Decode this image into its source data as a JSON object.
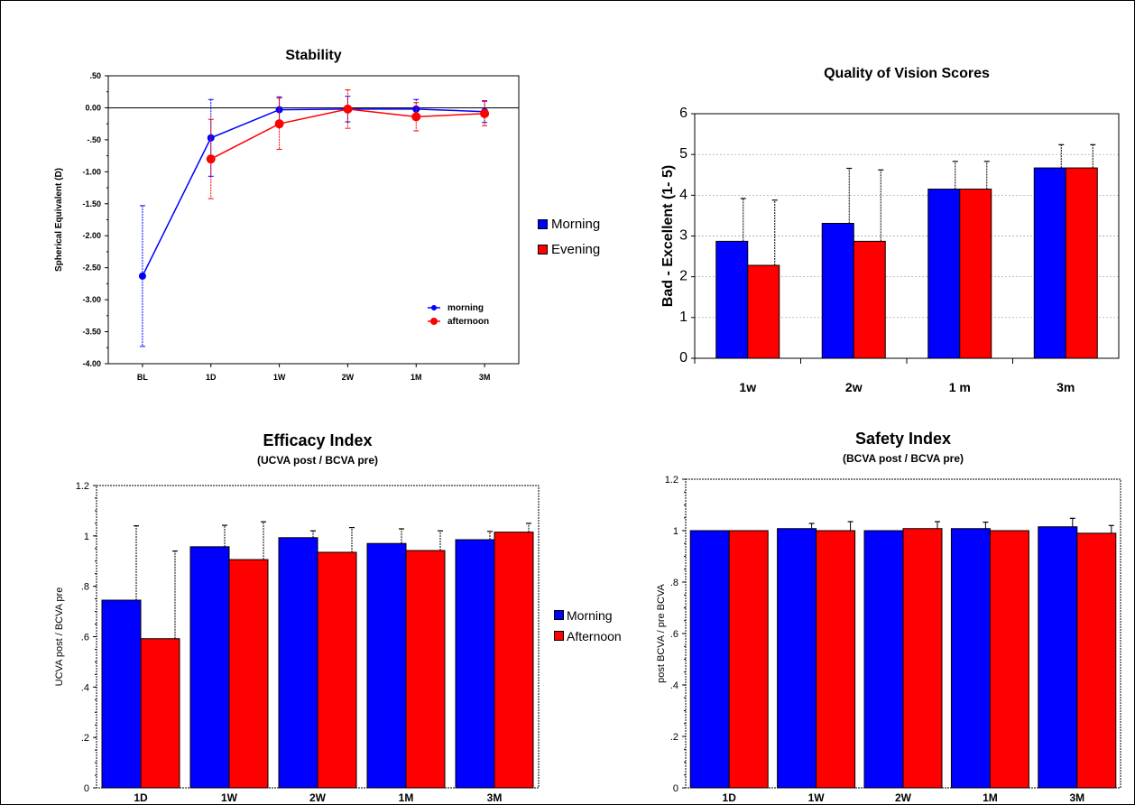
{
  "colors": {
    "morning": "#0000ff",
    "evening": "#ff0000"
  },
  "chart_data": [
    {
      "id": "stability",
      "type": "line",
      "title": "Stability",
      "ylabel": "Spherical Equivalent (D)",
      "categories": [
        "BL",
        "1D",
        "1W",
        "2W",
        "1M",
        "3M"
      ],
      "yticks": [
        ".50",
        "0.00",
        "-.50",
        "-1.00",
        "-1.50",
        "-2.00",
        "-2.50",
        "-3.00",
        "-3.50",
        "-4.00"
      ],
      "ylim": [
        -4.0,
        0.5
      ],
      "series": [
        {
          "name": "morning",
          "x": [
            "BL",
            "1D",
            "1W",
            "2W",
            "1M",
            "3M"
          ],
          "values": [
            -2.63,
            -0.47,
            -0.03,
            -0.02,
            -0.02,
            -0.06
          ],
          "err": [
            1.1,
            0.6,
            0.2,
            0.2,
            0.15,
            0.17
          ]
        },
        {
          "name": "afternoon",
          "x": [
            "1D",
            "1W",
            "2W",
            "1M",
            "3M"
          ],
          "values": [
            -0.8,
            -0.25,
            -0.02,
            -0.14,
            -0.09
          ],
          "err": [
            0.62,
            0.4,
            0.3,
            0.22,
            0.19
          ]
        }
      ]
    },
    {
      "id": "quality",
      "type": "bar",
      "title": "Quality of Vision Scores",
      "ylabel": "Bad - Excellent (1- 5)",
      "categories": [
        "1w",
        "2w",
        "1 m",
        "3m"
      ],
      "yticks": [
        "0",
        "1",
        "2",
        "3",
        "4",
        "5",
        "6"
      ],
      "ylim": [
        0,
        6
      ],
      "series": [
        {
          "name": "Morning",
          "values": [
            2.87,
            3.31,
            4.15,
            4.67
          ],
          "err": [
            1.05,
            1.35,
            0.68,
            0.57
          ]
        },
        {
          "name": "Evening",
          "values": [
            2.28,
            2.87,
            4.15,
            4.67
          ],
          "err": [
            1.6,
            1.75,
            0.68,
            0.57
          ]
        }
      ],
      "legend": [
        "Morning",
        "Evening"
      ]
    },
    {
      "id": "efficacy",
      "type": "bar",
      "title": "Efficacy Index",
      "subtitle": "(UCVA post / BCVA pre)",
      "ylabel": "UCVA post / BCVA pre",
      "categories": [
        "1D",
        "1W",
        "2W",
        "1M",
        "3M"
      ],
      "yticks": [
        "0",
        ".2",
        ".4",
        ".6",
        ".8",
        "1",
        "1.2"
      ],
      "ylim": [
        0,
        1.2
      ],
      "series": [
        {
          "name": "Morning",
          "values": [
            0.745,
            0.957,
            0.993,
            0.97,
            0.985
          ],
          "err": [
            0.295,
            0.085,
            0.027,
            0.058,
            0.033
          ]
        },
        {
          "name": "Afternoon",
          "values": [
            0.592,
            0.906,
            0.935,
            0.942,
            1.015
          ],
          "err": [
            0.348,
            0.15,
            0.098,
            0.078,
            0.035
          ]
        }
      ],
      "legend": [
        "Morning",
        "Afternoon"
      ]
    },
    {
      "id": "safety",
      "type": "bar",
      "title": "Safety Index",
      "subtitle": "(BCVA post / BCVA pre)",
      "ylabel": "post BCVA / pre BCVA",
      "categories": [
        "1D",
        "1W",
        "2W",
        "1M",
        "3M"
      ],
      "yticks": [
        "0",
        ".2",
        ".4",
        ".6",
        ".8",
        "1",
        "1.2"
      ],
      "ylim": [
        0,
        1.2
      ],
      "series": [
        {
          "name": "Morning",
          "values": [
            1.0,
            1.008,
            1.0,
            1.008,
            1.015
          ],
          "err": [
            0.0,
            0.02,
            0.0,
            0.025,
            0.033
          ]
        },
        {
          "name": "Afternoon",
          "values": [
            1.0,
            1.0,
            1.008,
            1.0,
            0.99
          ],
          "err": [
            0.0,
            0.035,
            0.027,
            0.0,
            0.03
          ]
        }
      ]
    }
  ]
}
